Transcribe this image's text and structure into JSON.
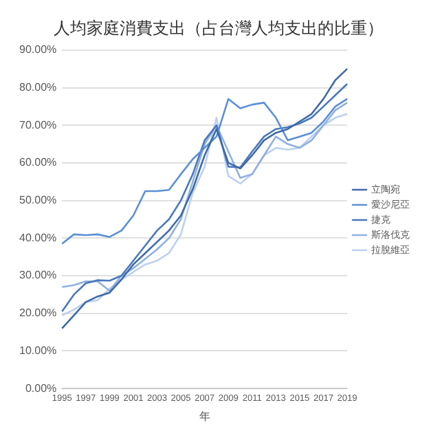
{
  "chart_data": {
    "type": "line",
    "title": "人均家庭消費支出（占台灣人均支出的比重）",
    "xlabel": "年",
    "categories": [
      "1995",
      null,
      "1997",
      null,
      "1999",
      null,
      "2001",
      null,
      "2003",
      null,
      "2005",
      null,
      "2007",
      null,
      "2009",
      null,
      "2011",
      null,
      "2013",
      null,
      "2015",
      null,
      "2017",
      null,
      "2019"
    ],
    "series": [
      {
        "name": "立陶宛",
        "color": "#3e6aa6",
        "values": [
          16,
          19.5,
          23,
          24.5,
          25.5,
          29,
          33,
          36,
          39,
          42,
          46,
          53,
          62,
          69,
          60,
          58.5,
          62,
          66,
          68,
          69,
          71,
          73,
          77,
          82,
          85
        ]
      },
      {
        "name": "愛沙尼亞",
        "color": "#5b8fd6",
        "values": [
          38.5,
          41,
          40.8,
          41,
          40.3,
          42,
          46,
          52.5,
          52.5,
          52.8,
          57,
          61,
          64,
          67,
          77,
          74.5,
          75.5,
          76,
          72,
          66,
          67,
          68,
          71,
          75,
          77
        ]
      },
      {
        "name": "捷克",
        "color": "#4a78bd",
        "values": [
          20.5,
          25,
          28,
          28.8,
          28.7,
          30,
          34,
          38,
          42,
          45,
          50,
          57,
          66,
          70,
          59,
          58.8,
          63,
          67,
          69,
          69.5,
          70.5,
          72,
          75,
          78,
          81
        ]
      },
      {
        "name": "斯洛伐克",
        "color": "#8fb0e0",
        "values": [
          27,
          27.5,
          28.5,
          28.5,
          26,
          30,
          32,
          34.5,
          37,
          40,
          45,
          55,
          65,
          70,
          63,
          56,
          57,
          62,
          67,
          65,
          64,
          66,
          70,
          74,
          76
        ]
      },
      {
        "name": "拉脫維亞",
        "color": "#bcd0ef",
        "values": [
          19.5,
          21,
          23,
          23.5,
          26.5,
          29,
          31,
          33,
          34,
          36,
          41,
          52,
          59,
          72,
          56.5,
          54.5,
          57,
          62,
          64,
          63.5,
          64,
          67,
          70,
          72,
          73
        ]
      }
    ],
    "ylim": [
      0,
      90
    ],
    "yticks": [
      {
        "value": 0,
        "label": "0.00%"
      },
      {
        "value": 10,
        "label": "10.00%"
      },
      {
        "value": 20,
        "label": "20.00%"
      },
      {
        "value": 30,
        "label": "30.00%"
      },
      {
        "value": 40,
        "label": "40.00%"
      },
      {
        "value": 50,
        "label": "50.00%"
      },
      {
        "value": 60,
        "label": "60.00%"
      },
      {
        "value": 70,
        "label": "70.00%"
      },
      {
        "value": 80,
        "label": "80.00%"
      },
      {
        "value": 90,
        "label": "90.00%"
      }
    ],
    "grid": "y",
    "legend": "right",
    "marker": "none",
    "line_style": "solid"
  }
}
